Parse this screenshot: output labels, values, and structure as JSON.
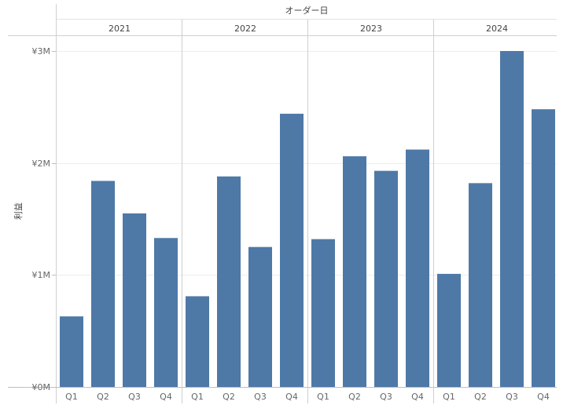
{
  "chart_data": {
    "type": "bar",
    "top_title": "オーダー日",
    "ylabel": "利益",
    "years": [
      "2021",
      "2022",
      "2023",
      "2024"
    ],
    "quarters": [
      "Q1",
      "Q2",
      "Q3",
      "Q4"
    ],
    "y_ticks": [
      "¥0M",
      "¥1M",
      "¥2M",
      "¥3M"
    ],
    "y_tick_values": [
      0,
      1000000,
      2000000,
      3000000
    ],
    "ylim": [
      0,
      3000000
    ],
    "bar_color": "#4e79a7",
    "series": [
      {
        "values": [
          630000,
          1840000,
          1550000,
          1330000,
          810000,
          1880000,
          1250000,
          2440000,
          1320000,
          2060000,
          1930000,
          2120000,
          1010000,
          1820000,
          3000000,
          2480000
        ]
      }
    ]
  }
}
